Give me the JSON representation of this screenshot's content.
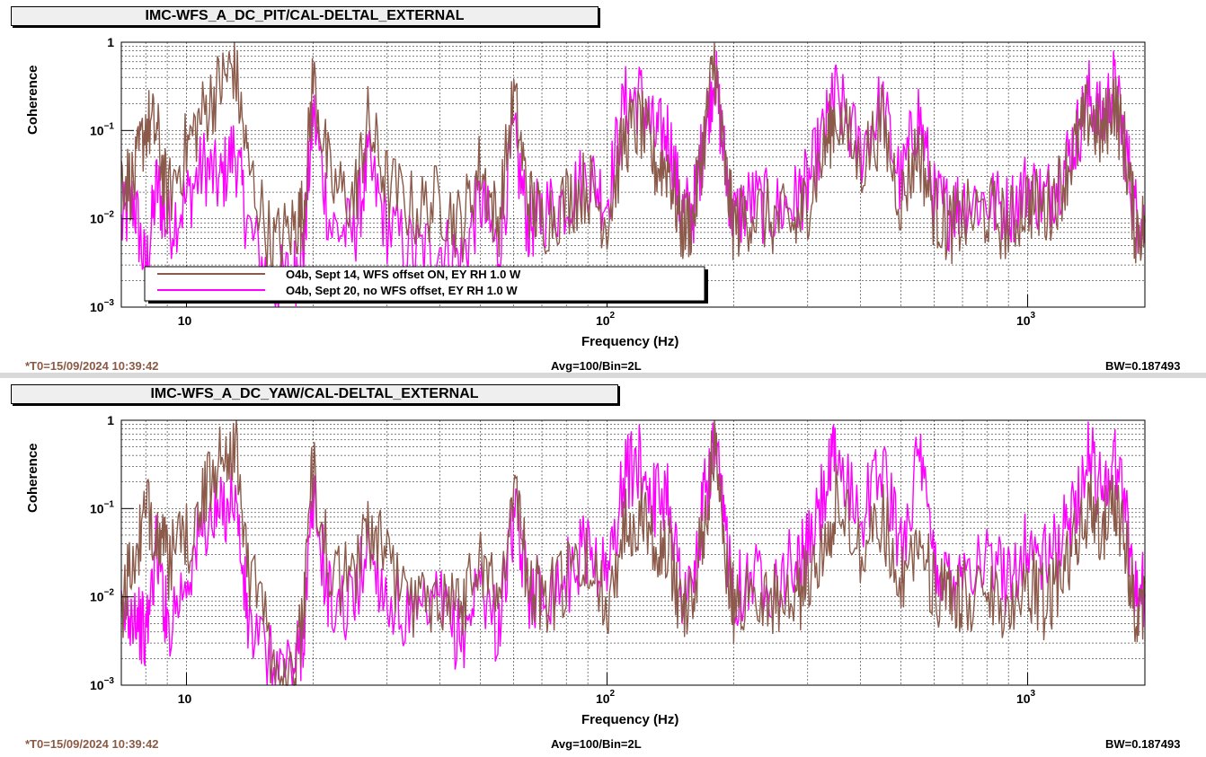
{
  "colors": {
    "series_on": "#8b5a4a",
    "series_nooffset": "#ff00ff",
    "footer_t0": "#8a5a44"
  },
  "chart_data": [
    {
      "type": "line",
      "title": "IMC-WFS_A_DC_PIT/CAL-DELTAL_EXTERNAL",
      "xlabel": "Frequency (Hz)",
      "ylabel": "Coherence",
      "xscale": "log",
      "yscale": "log",
      "xlim": [
        7,
        1900
      ],
      "ylim": [
        0.001,
        1
      ],
      "grid": true,
      "legend_position": "bottom-left",
      "x_ticks": [
        {
          "v": 10,
          "t": "10"
        },
        {
          "v": 100,
          "t": "10",
          "e": "2"
        },
        {
          "v": 1000,
          "t": "10",
          "e": "3"
        }
      ],
      "y_ticks": [
        {
          "v": 1,
          "t": "1"
        },
        {
          "v": 0.1,
          "t": "10",
          "e": "−1"
        },
        {
          "v": 0.01,
          "t": "10",
          "e": "−2"
        },
        {
          "v": 0.001,
          "t": "10",
          "e": "−3"
        }
      ],
      "x": [
        7,
        7.5,
        8,
        8.5,
        9,
        10,
        11,
        12,
        13,
        14,
        16,
        18,
        19,
        20,
        22,
        25,
        27,
        30,
        35,
        40,
        45,
        50,
        55,
        60,
        65,
        70,
        80,
        90,
        100,
        110,
        120,
        130,
        140,
        150,
        160,
        170,
        180,
        190,
        200,
        220,
        250,
        280,
        300,
        330,
        350,
        400,
        450,
        500,
        550,
        600,
        650,
        700,
        800,
        900,
        1000,
        1100,
        1200,
        1300,
        1400,
        1500,
        1600,
        1700,
        1800,
        1900
      ],
      "series": [
        {
          "name": "O4b, Sept 14, WFS offset ON, EY RH 1.0 W",
          "values": [
            0.04,
            0.03,
            0.15,
            0.12,
            0.02,
            0.08,
            0.2,
            0.4,
            0.7,
            0.05,
            0.006,
            0.01,
            0.015,
            0.5,
            0.03,
            0.02,
            0.15,
            0.03,
            0.015,
            0.02,
            0.01,
            0.05,
            0.01,
            0.3,
            0.02,
            0.012,
            0.02,
            0.03,
            0.012,
            0.1,
            0.15,
            0.05,
            0.05,
            0.01,
            0.012,
            0.1,
            0.8,
            0.05,
            0.01,
            0.015,
            0.012,
            0.01,
            0.02,
            0.08,
            0.2,
            0.05,
            0.15,
            0.02,
            0.08,
            0.015,
            0.01,
            0.012,
            0.015,
            0.01,
            0.02,
            0.015,
            0.03,
            0.08,
            0.2,
            0.1,
            0.3,
            0.08,
            0.01,
            0.01
          ]
        },
        {
          "name": "O4b, Sept 20, no WFS offset, EY RH 1.0 W",
          "values": [
            0.01,
            0.02,
            0.003,
            0.03,
            0.01,
            0.02,
            0.05,
            0.03,
            0.08,
            0.01,
            0.002,
            0.003,
            0.006,
            0.2,
            0.01,
            0.008,
            0.05,
            0.01,
            0.005,
            0.006,
            0.004,
            0.02,
            0.005,
            0.1,
            0.01,
            0.015,
            0.02,
            0.04,
            0.02,
            0.25,
            0.3,
            0.1,
            0.12,
            0.015,
            0.015,
            0.1,
            0.6,
            0.06,
            0.012,
            0.02,
            0.015,
            0.02,
            0.03,
            0.12,
            0.3,
            0.07,
            0.25,
            0.03,
            0.2,
            0.02,
            0.015,
            0.02,
            0.02,
            0.015,
            0.03,
            0.02,
            0.04,
            0.1,
            0.3,
            0.15,
            0.4,
            0.1,
            0.015,
            0.01
          ]
        }
      ]
    },
    {
      "type": "line",
      "title": "IMC-WFS_A_DC_YAW/CAL-DELTAL_EXTERNAL",
      "xlabel": "Frequency (Hz)",
      "ylabel": "Coherence",
      "xscale": "log",
      "yscale": "log",
      "xlim": [
        7,
        1900
      ],
      "ylim": [
        0.001,
        1
      ],
      "grid": true,
      "legend_position": "none",
      "x_ticks": [
        {
          "v": 10,
          "t": "10"
        },
        {
          "v": 100,
          "t": "10",
          "e": "2"
        },
        {
          "v": 1000,
          "t": "10",
          "e": "3"
        }
      ],
      "y_ticks": [
        {
          "v": 1,
          "t": "1"
        },
        {
          "v": 0.1,
          "t": "10",
          "e": "−1"
        },
        {
          "v": 0.01,
          "t": "10",
          "e": "−2"
        },
        {
          "v": 0.001,
          "t": "10",
          "e": "−3"
        }
      ],
      "x": [
        7,
        7.5,
        8,
        8.5,
        9,
        10,
        11,
        12,
        13,
        14,
        16,
        18,
        19,
        20,
        22,
        25,
        27,
        30,
        35,
        40,
        45,
        50,
        55,
        60,
        65,
        70,
        80,
        90,
        100,
        110,
        120,
        130,
        140,
        150,
        160,
        170,
        180,
        190,
        200,
        220,
        250,
        280,
        300,
        330,
        350,
        400,
        450,
        500,
        550,
        600,
        650,
        700,
        800,
        900,
        1000,
        1100,
        1200,
        1300,
        1400,
        1500,
        1600,
        1700,
        1800,
        1900
      ],
      "series": [
        {
          "name": "O4b, Sept 14, WFS offset ON, EY RH 1.0 W",
          "values": [
            0.01,
            0.03,
            0.1,
            0.08,
            0.03,
            0.05,
            0.15,
            0.5,
            0.7,
            0.03,
            0.003,
            0.001,
            0.01,
            0.4,
            0.02,
            0.02,
            0.08,
            0.03,
            0.01,
            0.015,
            0.01,
            0.04,
            0.01,
            0.25,
            0.02,
            0.01,
            0.02,
            0.03,
            0.01,
            0.08,
            0.12,
            0.06,
            0.04,
            0.01,
            0.012,
            0.08,
            0.7,
            0.04,
            0.01,
            0.015,
            0.012,
            0.01,
            0.02,
            0.05,
            0.15,
            0.04,
            0.1,
            0.02,
            0.06,
            0.015,
            0.01,
            0.012,
            0.015,
            0.01,
            0.02,
            0.01,
            0.02,
            0.05,
            0.12,
            0.06,
            0.2,
            0.05,
            0.01,
            0.01
          ]
        },
        {
          "name": "O4b, Sept 20, no WFS offset, EY RH 1.0 W",
          "values": [
            0.006,
            0.01,
            0.004,
            0.05,
            0.006,
            0.02,
            0.08,
            0.1,
            0.2,
            0.006,
            0.002,
            0.002,
            0.005,
            0.15,
            0.01,
            0.01,
            0.05,
            0.012,
            0.006,
            0.01,
            0.004,
            0.02,
            0.005,
            0.1,
            0.015,
            0.015,
            0.02,
            0.05,
            0.02,
            0.3,
            0.4,
            0.15,
            0.2,
            0.015,
            0.015,
            0.15,
            0.6,
            0.08,
            0.015,
            0.02,
            0.02,
            0.03,
            0.04,
            0.2,
            0.5,
            0.1,
            0.4,
            0.04,
            0.5,
            0.03,
            0.02,
            0.03,
            0.03,
            0.02,
            0.05,
            0.03,
            0.05,
            0.15,
            0.5,
            0.2,
            0.5,
            0.15,
            0.015,
            0.015
          ]
        }
      ]
    }
  ],
  "panels": [
    {
      "title": "IMC-WFS_A_DC_PIT/CAL-DELTAL_EXTERNAL",
      "ylabel": "Coherence",
      "xlabel": "Frequency (Hz)",
      "t0": "*T0=15/09/2024 10:39:42",
      "avg": "Avg=100/Bin=2L",
      "bw": "BW=0.187493",
      "legend": [
        "O4b, Sept 14, WFS offset ON, EY RH 1.0 W",
        "O4b, Sept 20, no WFS offset, EY RH 1.0 W"
      ]
    },
    {
      "title": "IMC-WFS_A_DC_YAW/CAL-DELTAL_EXTERNAL",
      "ylabel": "Coherence",
      "xlabel": "Frequency (Hz)",
      "t0": "*T0=15/09/2024 10:39:42",
      "avg": "Avg=100/Bin=2L",
      "bw": "BW=0.187493"
    }
  ]
}
